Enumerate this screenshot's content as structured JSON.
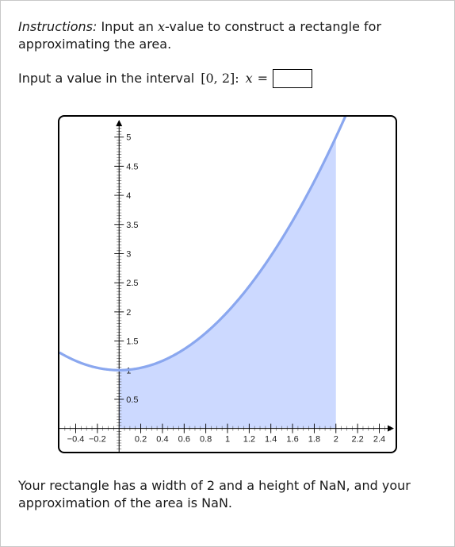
{
  "instructions": {
    "lead": "Instructions:",
    "part1": " Input an ",
    "var": "x",
    "part2": "-value to construct a rectangle for approximating the area."
  },
  "input_prompt": {
    "text": "Input a value in the interval",
    "interval": "[0, 2]:",
    "var": "x",
    "equals": "=",
    "value": ""
  },
  "chart_data": {
    "type": "area",
    "function": "1 + x^2",
    "curve_color": "#8aa7ef",
    "fill_color": "#ccd9ff",
    "shaded_x_range": [
      0,
      2
    ],
    "xlim": [
      -0.55,
      2.55
    ],
    "ylim": [
      -0.4,
      5.35
    ],
    "x_ticks": [
      {
        "value": -0.4,
        "label": "−0.4"
      },
      {
        "value": -0.2,
        "label": "−0.2"
      },
      {
        "value": 0.2,
        "label": "0.2"
      },
      {
        "value": 0.4,
        "label": "0.4"
      },
      {
        "value": 0.6,
        "label": "0.6"
      },
      {
        "value": 0.8,
        "label": "0.8"
      },
      {
        "value": 1,
        "label": "1"
      },
      {
        "value": 1.2,
        "label": "1.2"
      },
      {
        "value": 1.4,
        "label": "1.4"
      },
      {
        "value": 1.6,
        "label": "1.6"
      },
      {
        "value": 1.8,
        "label": "1.8"
      },
      {
        "value": 2,
        "label": "2"
      },
      {
        "value": 2.2,
        "label": "2.2"
      },
      {
        "value": 2.4,
        "label": "2.4"
      }
    ],
    "y_ticks": [
      {
        "value": 0.5,
        "label": "0.5"
      },
      {
        "value": 1,
        "label": "1"
      },
      {
        "value": 1.5,
        "label": "1.5"
      },
      {
        "value": 2,
        "label": "2"
      },
      {
        "value": 2.5,
        "label": "2.5"
      },
      {
        "value": 3,
        "label": "3"
      },
      {
        "value": 3.5,
        "label": "3.5"
      },
      {
        "value": 4,
        "label": "4"
      },
      {
        "value": 4.5,
        "label": "4.5"
      },
      {
        "value": 5,
        "label": "5"
      }
    ],
    "minor_tick_step": 0.05,
    "grid": false,
    "title": "",
    "xlabel": "",
    "ylabel": ""
  },
  "result": {
    "text": "Your rectangle has a width of 2 and a height of NaN, and your approximation of the area is NaN."
  }
}
